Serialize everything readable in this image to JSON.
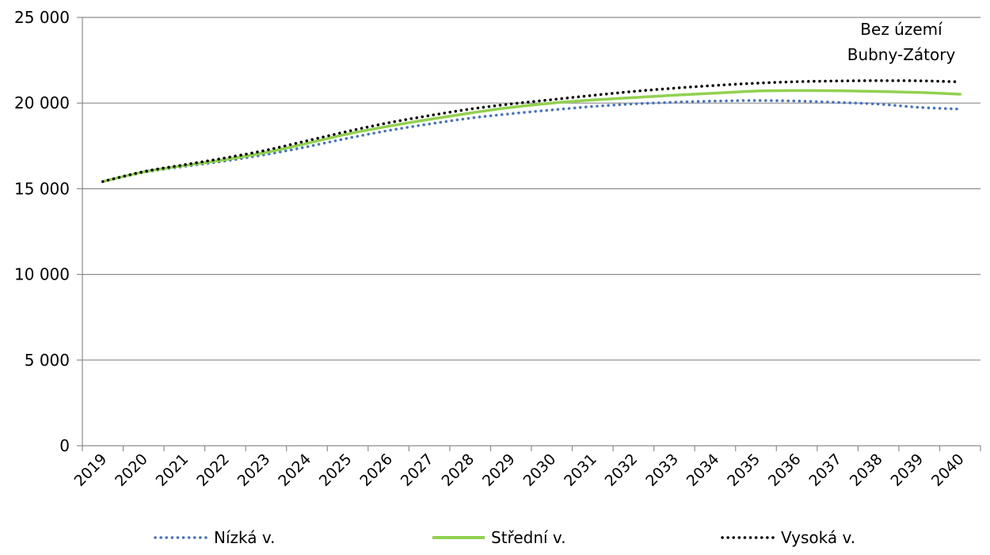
{
  "chart_data": {
    "type": "line",
    "title": "",
    "annotation": [
      "Bez území",
      "Bubny-Zátory"
    ],
    "xlabel": "",
    "ylabel": "",
    "categories": [
      "2019",
      "2020",
      "2021",
      "2022",
      "2023",
      "2024",
      "2025",
      "2026",
      "2027",
      "2028",
      "2029",
      "2030",
      "2031",
      "2032",
      "2033",
      "2034",
      "2035",
      "2036",
      "2037",
      "2038",
      "2039",
      "2040"
    ],
    "ylim": [
      0,
      25000
    ],
    "yticks": [
      0,
      5000,
      10000,
      15000,
      20000,
      25000
    ],
    "ytick_labels": [
      "0",
      "5 000",
      "10 000",
      "15 000",
      "20 000",
      "25 000"
    ],
    "grid": true,
    "legend_position": "bottom",
    "series": [
      {
        "name": "Nízká v.",
        "color": "#4472c4",
        "style": "dotted",
        "values": [
          15420,
          15950,
          16300,
          16620,
          17000,
          17450,
          17950,
          18400,
          18780,
          19120,
          19380,
          19600,
          19800,
          19950,
          20050,
          20120,
          20150,
          20120,
          20040,
          19940,
          19750,
          19650
        ]
      },
      {
        "name": "Střední v.",
        "color": "#92d050",
        "style": "solid",
        "values": [
          15420,
          15980,
          16350,
          16700,
          17120,
          17650,
          18200,
          18650,
          19050,
          19420,
          19750,
          20000,
          20180,
          20320,
          20460,
          20580,
          20700,
          20730,
          20720,
          20680,
          20620,
          20520
        ]
      },
      {
        "name": "Vysoká v.",
        "color": "#000000",
        "style": "dotted",
        "values": [
          15420,
          16000,
          16400,
          16800,
          17250,
          17800,
          18350,
          18850,
          19270,
          19650,
          19950,
          20200,
          20450,
          20680,
          20870,
          21030,
          21160,
          21250,
          21290,
          21310,
          21300,
          21240
        ]
      }
    ]
  }
}
